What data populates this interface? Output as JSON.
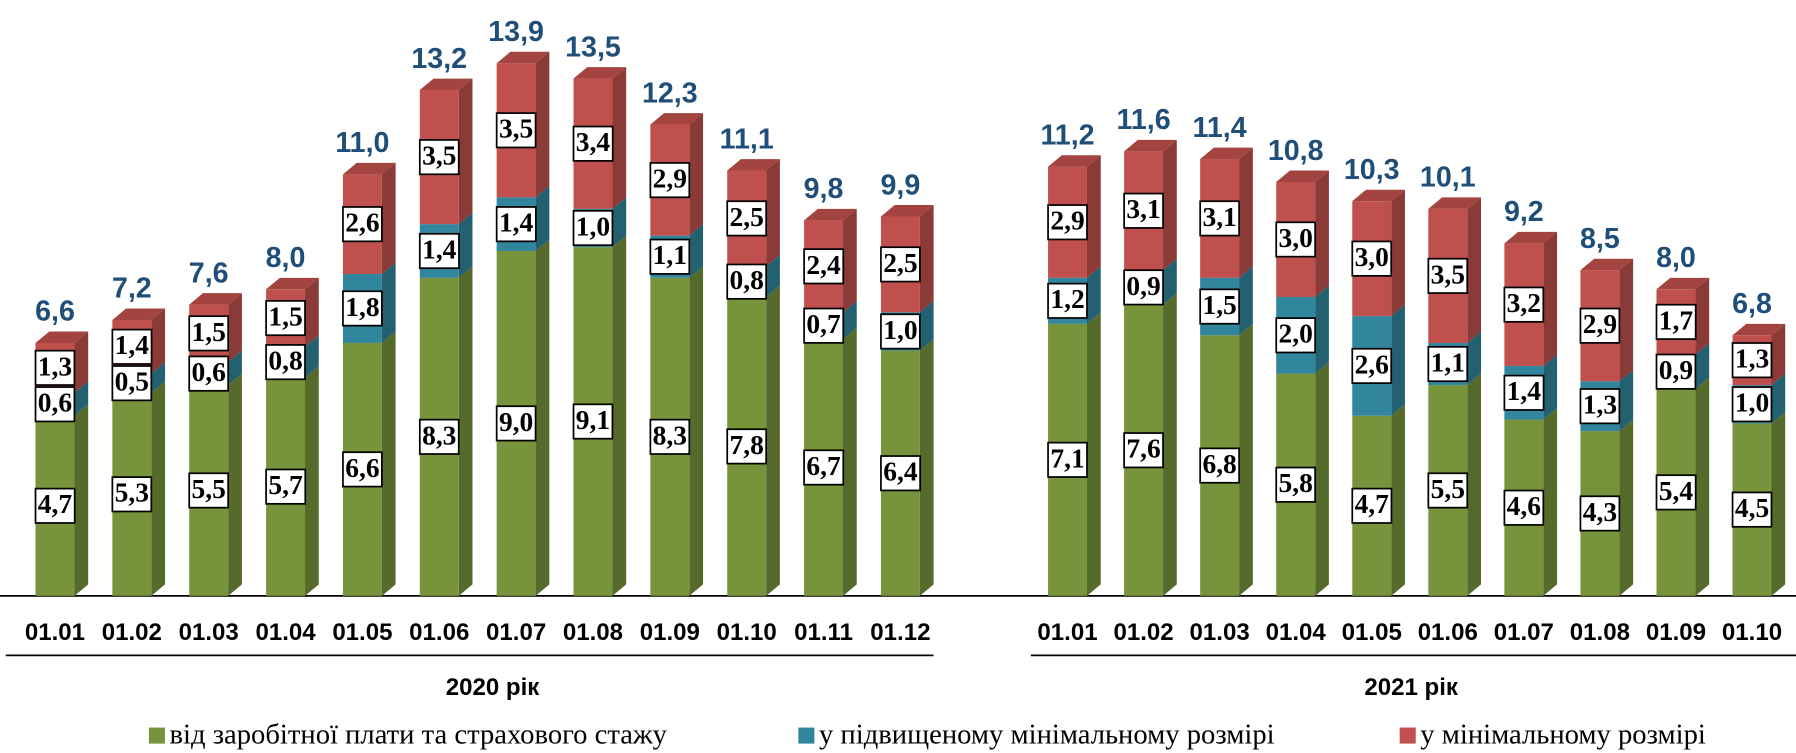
{
  "chart_data": {
    "type": "stacked_bar_3d",
    "groups": [
      {
        "label": "2020 рік",
        "categories": [
          "01.01",
          "01.02",
          "01.03",
          "01.04",
          "01.05",
          "01.06",
          "01.07",
          "01.08",
          "01.09",
          "01.10",
          "01.11",
          "01.12"
        ]
      },
      {
        "label": "2021 рік",
        "categories": [
          "01.01",
          "01.02",
          "01.03",
          "01.04",
          "01.05",
          "01.06",
          "01.07",
          "01.08",
          "01.09",
          "01.10"
        ]
      }
    ],
    "series": [
      {
        "name": "від заробітної плати та страхового стажу",
        "color": "#77933c",
        "values": [
          4.7,
          5.3,
          5.5,
          5.7,
          6.6,
          8.3,
          9.0,
          9.1,
          8.3,
          7.8,
          6.7,
          6.4,
          7.1,
          7.6,
          6.8,
          5.8,
          4.7,
          5.5,
          4.6,
          4.3,
          5.4,
          4.5
        ],
        "value_labels": [
          "4,7",
          "5,3",
          "5,5",
          "5,7",
          "6,6",
          "8,3",
          "9,0",
          "9,1",
          "8,3",
          "7,8",
          "6,7",
          "6,4",
          "7,1",
          "7,6",
          "6,8",
          "5,8",
          "4,7",
          "5,5",
          "4,6",
          "4,3",
          "5,4",
          "4,5"
        ]
      },
      {
        "name": "у підвищеному мінімальному розмірі",
        "color": "#31859c",
        "values": [
          0.6,
          0.5,
          0.6,
          0.8,
          1.8,
          1.4,
          1.4,
          1.0,
          1.1,
          0.8,
          0.7,
          1.0,
          1.2,
          0.9,
          1.5,
          2.0,
          2.6,
          1.1,
          1.4,
          1.3,
          0.9,
          1.0
        ],
        "value_labels": [
          "0,6",
          "0,5",
          "0,6",
          "0,8",
          "1,8",
          "1,4",
          "1,4",
          "1,0",
          "1,1",
          "0,8",
          "0,7",
          "1,0",
          "1,2",
          "0,9",
          "1,5",
          "2,0",
          "2,6",
          "1,1",
          "1,4",
          "1,3",
          "0,9",
          "1,0"
        ]
      },
      {
        "name": "у мінімальному розмірі",
        "color": "#c0504d",
        "values": [
          1.3,
          1.4,
          1.5,
          1.5,
          2.6,
          3.5,
          3.5,
          3.4,
          2.9,
          2.5,
          2.4,
          2.5,
          2.9,
          3.1,
          3.1,
          3.0,
          3.0,
          3.5,
          3.2,
          2.9,
          1.7,
          1.3
        ],
        "value_labels": [
          "1,3",
          "1,4",
          "1,5",
          "1,5",
          "2,6",
          "3,5",
          "3,5",
          "3,4",
          "2,9",
          "2,5",
          "2,4",
          "2,5",
          "2,9",
          "3,1",
          "3,1",
          "3,0",
          "3,0",
          "3,5",
          "3,2",
          "2,9",
          "1,7",
          "1,3"
        ]
      }
    ],
    "totals": [
      6.6,
      7.2,
      7.6,
      8.0,
      11.0,
      13.2,
      13.9,
      13.5,
      12.3,
      11.1,
      9.8,
      9.9,
      11.2,
      11.6,
      11.4,
      10.8,
      10.3,
      10.1,
      9.2,
      8.5,
      8.0,
      6.8
    ],
    "total_labels": [
      "6,6",
      "7,2",
      "7,6",
      "8,0",
      "11,0",
      "13,2",
      "13,9",
      "13,5",
      "12,3",
      "11,1",
      "9,8",
      "9,9",
      "11,2",
      "11,6",
      "11,4",
      "10,8",
      "10,3",
      "10,1",
      "9,2",
      "8,5",
      "8,0",
      "6,8"
    ],
    "legend": "bottom"
  }
}
